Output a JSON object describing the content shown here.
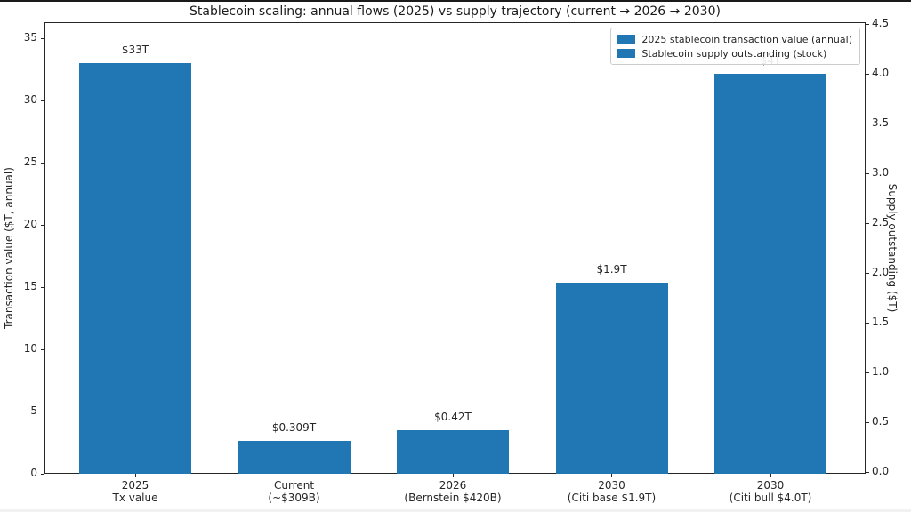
{
  "chart_data": {
    "type": "bar",
    "title": "Stablecoin scaling: annual flows (2025) vs supply trajectory (current → 2026 → 2030)",
    "ylabel_left": "Transaction value ($T, annual)",
    "ylabel_right": "Supply outstanding ($T)",
    "ylim_left": [
      0,
      35
    ],
    "ylim_right": [
      0,
      4.5
    ],
    "yticks_left": [
      "0",
      "5",
      "10",
      "15",
      "20",
      "25",
      "30",
      "35"
    ],
    "yticks_right": [
      "0.0",
      "0.5",
      "1.0",
      "1.5",
      "2.0",
      "2.5",
      "3.0",
      "3.5",
      "4.0",
      "4.5"
    ],
    "grid": "horizontal gridlines at left-axis ticks",
    "bar_color": "#2077b4",
    "bars": [
      {
        "category": [
          "2025",
          "Tx value"
        ],
        "value": 33,
        "axis": "left",
        "label": "$33T",
        "series": "2025 stablecoin transaction value (annual)"
      },
      {
        "category": [
          "Current",
          "(~$309B)"
        ],
        "value": 0.309,
        "axis": "right",
        "label": "$0.309T",
        "series": "Stablecoin supply outstanding (stock)"
      },
      {
        "category": [
          "2026",
          "(Bernstein $420B)"
        ],
        "value": 0.42,
        "axis": "right",
        "label": "$0.42T",
        "series": "Stablecoin supply outstanding (stock)"
      },
      {
        "category": [
          "2030",
          "(Citi base $1.9T)"
        ],
        "value": 1.9,
        "axis": "right",
        "label": "$1.9T",
        "series": "Stablecoin supply outstanding (stock)"
      },
      {
        "category": [
          "2030",
          "(Citi bull $4.0T)"
        ],
        "value": 4.0,
        "axis": "right",
        "label": "$4T",
        "series": "Stablecoin supply outstanding (stock)"
      }
    ],
    "legend": {
      "position": "upper right",
      "entries": [
        {
          "label": "2025 stablecoin transaction value (annual)",
          "color": "#2077b4"
        },
        {
          "label": "Stablecoin supply outstanding (stock)",
          "color": "#2077b4"
        }
      ]
    }
  }
}
